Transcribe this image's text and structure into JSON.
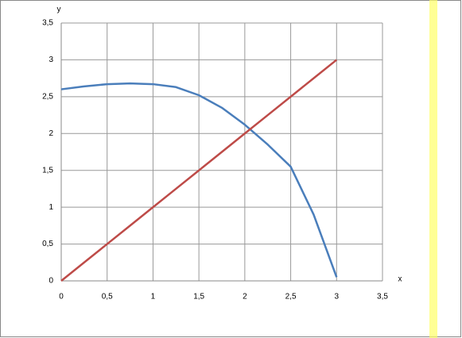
{
  "chart_data": {
    "type": "line",
    "x_label": "x",
    "y_label": "y",
    "x": [
      0,
      0.25,
      0.5,
      0.75,
      1,
      1.25,
      1.5,
      1.75,
      2,
      2.25,
      2.5,
      2.75,
      3
    ],
    "series": [
      {
        "color": "#4a7ebb",
        "values": [
          2.6,
          2.64,
          2.67,
          2.68,
          2.67,
          2.63,
          2.52,
          2.35,
          2.12,
          1.85,
          1.55,
          0.9,
          0.05
        ]
      },
      {
        "color": "#be4b48",
        "values": [
          0,
          0.25,
          0.5,
          0.75,
          1,
          1.25,
          1.5,
          1.75,
          2,
          2.25,
          2.5,
          2.75,
          3
        ]
      }
    ],
    "xlim": [
      0,
      3.5
    ],
    "ylim": [
      0,
      3.5
    ],
    "xticks": [
      0,
      {
        "value": 0.5,
        "label": "0,5"
      },
      1,
      {
        "value": 1.5,
        "label": "1,5"
      },
      2,
      {
        "value": 2.5,
        "label": "2,5"
      },
      3,
      {
        "value": 3.5,
        "label": "3,5"
      }
    ],
    "yticks": [
      0,
      {
        "value": 0.5,
        "label": "0,5"
      },
      1,
      {
        "value": 1.5,
        "label": "1,5"
      },
      2,
      {
        "value": 2.5,
        "label": "2,5"
      },
      3,
      {
        "value": 3.5,
        "label": "3,5"
      }
    ],
    "grid": true
  }
}
